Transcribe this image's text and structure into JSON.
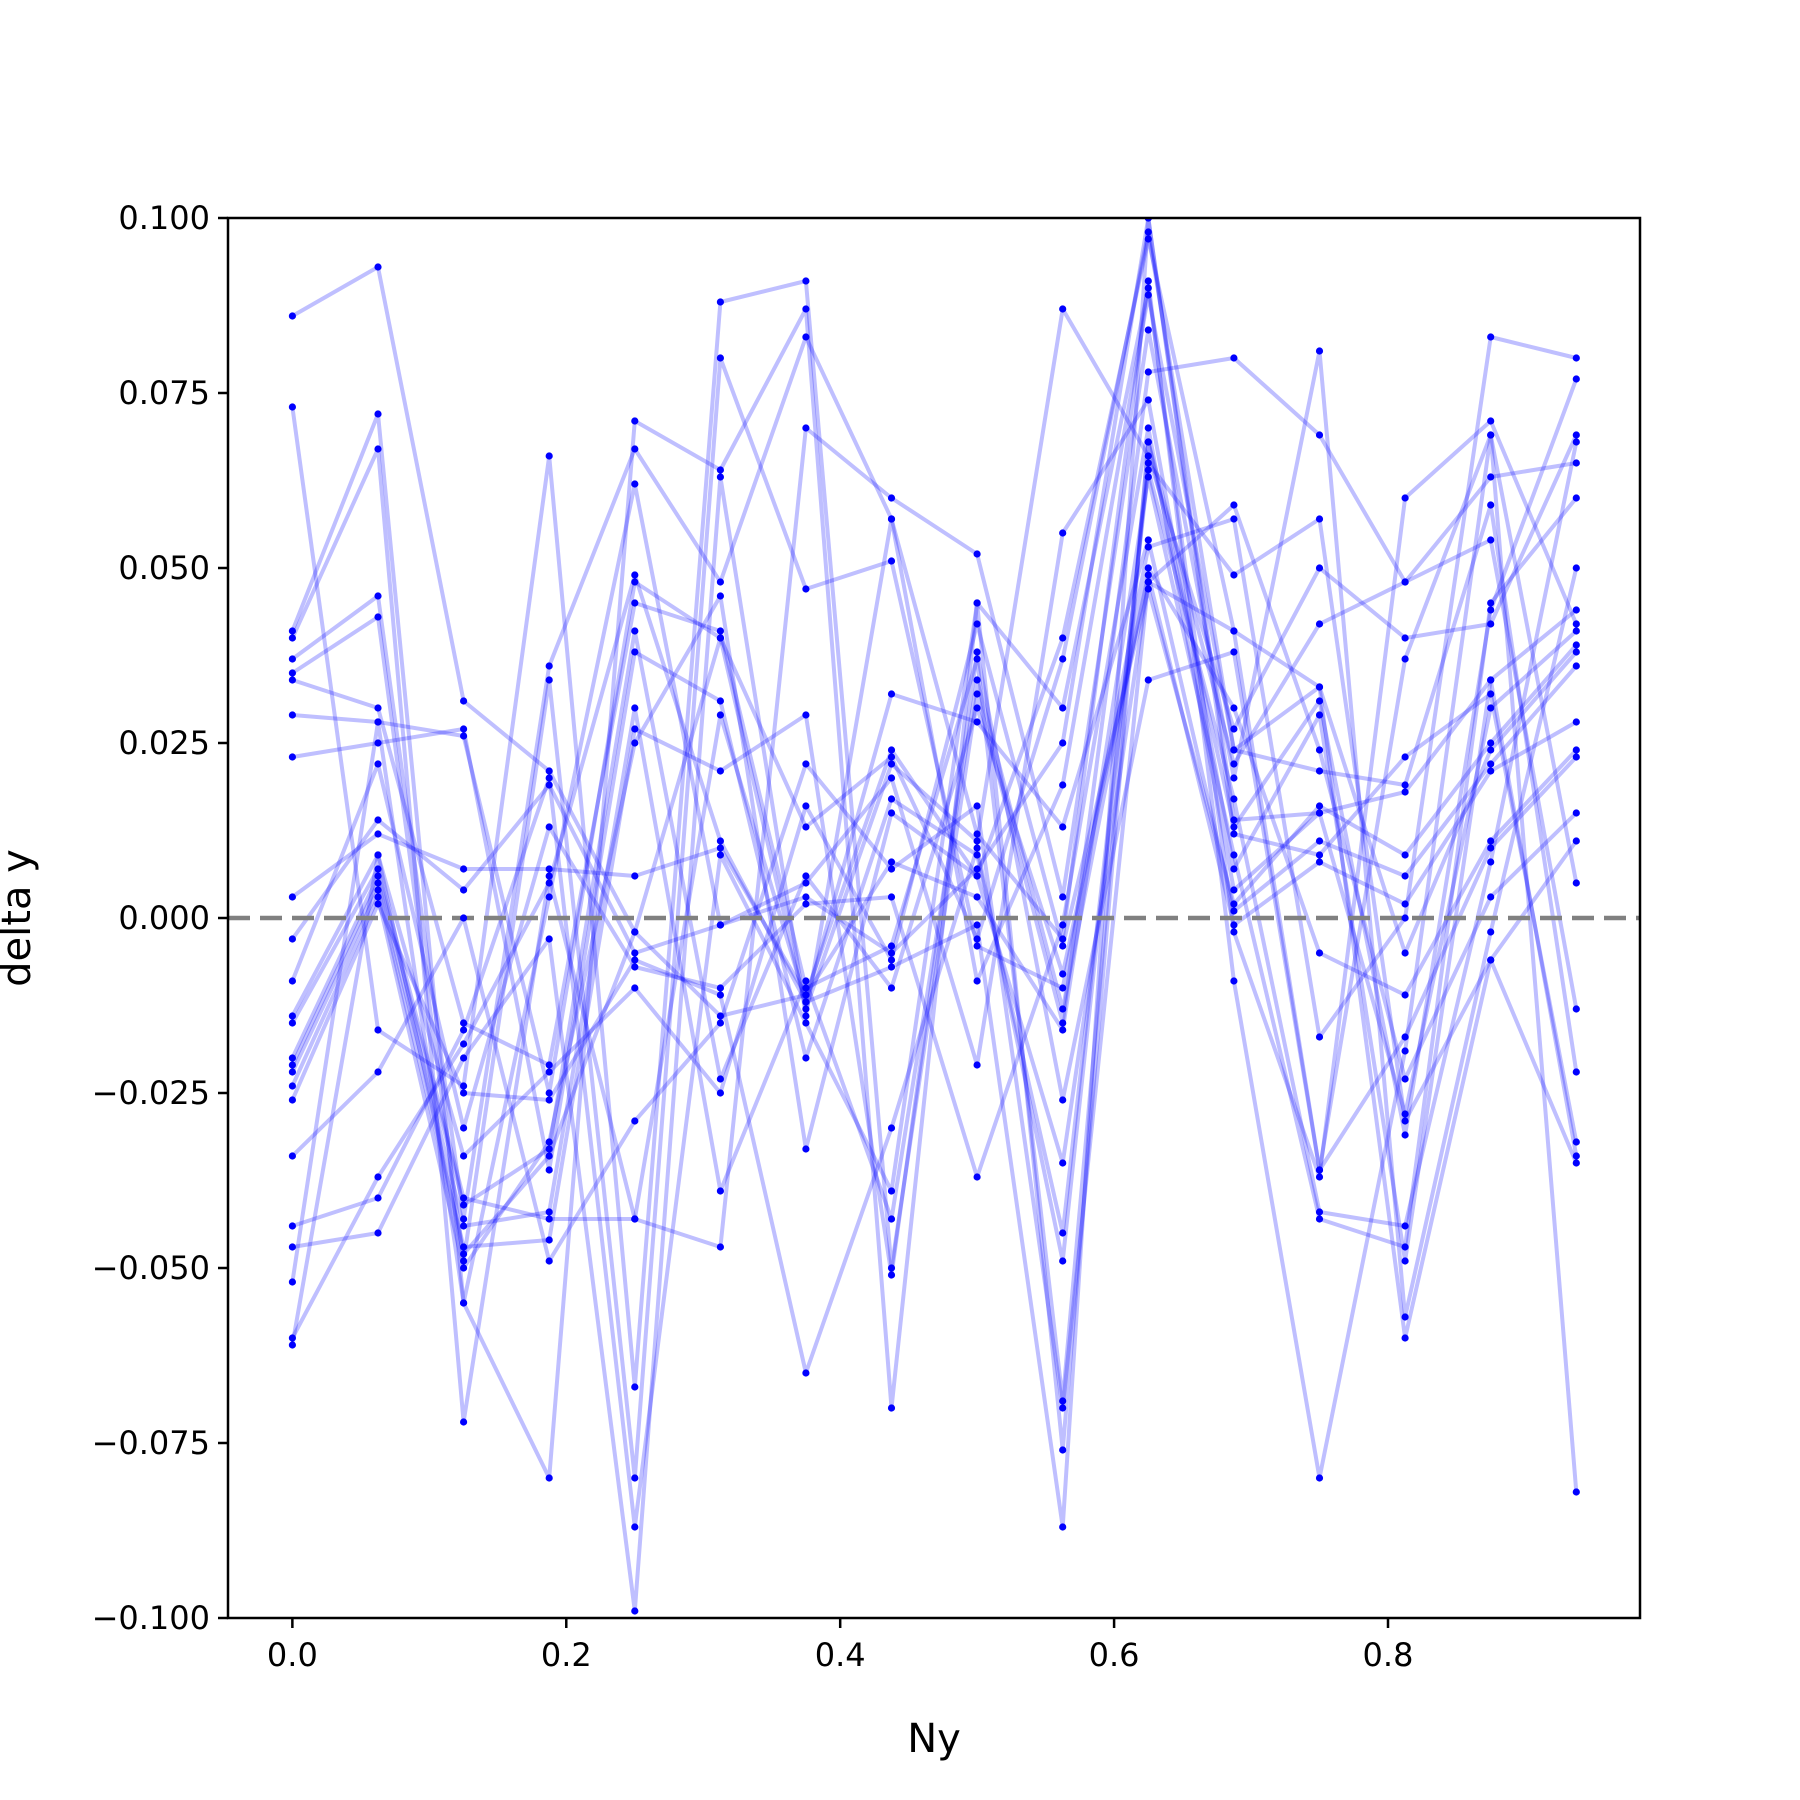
{
  "chart_data": {
    "type": "line",
    "xlabel": "Ny",
    "ylabel": "delta y",
    "xlim": [
      -0.047,
      0.984
    ],
    "ylim": [
      -0.1,
      0.1
    ],
    "x": [
      0.0,
      0.0625,
      0.125,
      0.1875,
      0.25,
      0.3125,
      0.375,
      0.4375,
      0.5,
      0.5625,
      0.625,
      0.6875,
      0.75,
      0.8125,
      0.875,
      0.9375
    ],
    "x_ticks": [
      {
        "value": 0.0,
        "label": "0.0"
      },
      {
        "value": 0.2,
        "label": "0.2"
      },
      {
        "value": 0.4,
        "label": "0.4"
      },
      {
        "value": 0.6,
        "label": "0.6"
      },
      {
        "value": 0.8,
        "label": "0.8"
      }
    ],
    "y_ticks": [
      {
        "value": -0.1,
        "label": "−0.100"
      },
      {
        "value": -0.075,
        "label": "−0.075"
      },
      {
        "value": -0.05,
        "label": "−0.050"
      },
      {
        "value": -0.025,
        "label": "−0.025"
      },
      {
        "value": 0.0,
        "label": "0.000"
      },
      {
        "value": 0.025,
        "label": "0.025"
      },
      {
        "value": 0.05,
        "label": "0.050"
      },
      {
        "value": 0.075,
        "label": "0.075"
      },
      {
        "value": 0.1,
        "label": "0.100"
      }
    ],
    "reference_line": {
      "y": 0.0,
      "style": "dashed",
      "color": "#808080"
    },
    "series_color": "#0000ff",
    "series_opacity": 0.25,
    "grid": false,
    "series": [
      {
        "values": [
          0.086,
          0.093,
          0.031,
          0.021,
          -0.002,
          -0.014,
          -0.011,
          0.024,
          0.006,
          0.04,
          0.097,
          0.041,
          0.033,
          -0.005,
          0.024,
          0.038
        ]
      },
      {
        "values": [
          0.073,
          -0.016,
          -0.024,
          0.066,
          -0.067,
          0.088,
          0.091,
          -0.05,
          0.032,
          -0.015,
          0.078,
          0.08,
          0.069,
          0.048,
          0.063,
          0.065
        ]
      },
      {
        "values": [
          0.041,
          0.072,
          -0.055,
          -0.08,
          0.071,
          0.064,
          0.087,
          -0.07,
          0.045,
          0.03,
          0.09,
          -0.002,
          -0.037,
          0.06,
          0.071,
          0.042
        ]
      },
      {
        "values": [
          0.04,
          0.067,
          -0.072,
          0.006,
          -0.043,
          -0.047,
          0.07,
          0.06,
          0.052,
          0.003,
          0.084,
          0.02,
          0.081,
          -0.057,
          -0.002,
          0.05
        ]
      },
      {
        "values": [
          0.037,
          0.046,
          -0.043,
          0.036,
          0.067,
          0.048,
          0.083,
          0.057,
          0.012,
          -0.003,
          0.091,
          -0.009,
          -0.08,
          -0.019,
          0.069,
          -0.082
        ]
      },
      {
        "values": [
          0.035,
          0.043,
          -0.049,
          0.034,
          -0.08,
          0.08,
          0.047,
          0.051,
          -0.004,
          -0.01,
          0.053,
          0.057,
          -0.017,
          0.0,
          0.083,
          0.08
        ]
      },
      {
        "values": [
          0.034,
          0.03,
          -0.015,
          -0.021,
          0.045,
          0.041,
          -0.01,
          -0.004,
          0.037,
          -0.069,
          0.068,
          0.013,
          0.031,
          -0.031,
          0.044,
          0.077
        ]
      },
      {
        "values": [
          0.029,
          0.028,
          0.026,
          -0.025,
          0.048,
          0.04,
          -0.013,
          0.022,
          0.011,
          0.087,
          0.066,
          0.027,
          0.05,
          0.04,
          0.042,
          0.069
        ]
      },
      {
        "values": [
          0.023,
          0.025,
          0.027,
          -0.036,
          0.038,
          0.031,
          -0.02,
          0.017,
          0.009,
          -0.045,
          0.064,
          0.017,
          -0.042,
          -0.044,
          0.008,
          0.068
        ]
      },
      {
        "values": [
          0.003,
          0.012,
          0.007,
          0.007,
          0.006,
          0.01,
          -0.011,
          0.008,
          0.003,
          -0.016,
          0.063,
          0.009,
          -0.043,
          -0.047,
          0.045,
          0.06
        ]
      },
      {
        "values": [
          -0.003,
          0.014,
          0.004,
          0.019,
          -0.005,
          -0.001,
          0.005,
          0.02,
          -0.021,
          0.055,
          0.074,
          0.007,
          0.029,
          -0.049,
          0.034,
          0.044
        ]
      },
      {
        "values": [
          -0.009,
          0.022,
          -0.03,
          0.013,
          -0.007,
          -0.01,
          0.002,
          0.003,
          -0.037,
          -0.001,
          0.07,
          0.004,
          0.015,
          -0.028,
          0.03,
          0.041
        ]
      },
      {
        "values": [
          -0.014,
          0.009,
          -0.034,
          -0.022,
          -0.01,
          -0.025,
          0.016,
          -0.006,
          0.042,
          -0.004,
          0.047,
          0.002,
          0.016,
          0.009,
          0.025,
          0.039
        ]
      },
      {
        "values": [
          -0.015,
          0.007,
          -0.04,
          -0.043,
          -0.043,
          0.029,
          -0.012,
          0.032,
          0.028,
          0.013,
          0.054,
          0.001,
          0.011,
          0.006,
          0.022,
          0.036
        ]
      },
      {
        "values": [
          -0.02,
          0.006,
          -0.041,
          -0.033,
          0.041,
          -0.023,
          0.006,
          -0.01,
          0.03,
          -0.008,
          0.049,
          -0.001,
          0.008,
          0.002,
          0.021,
          0.028
        ]
      },
      {
        "values": [
          -0.021,
          0.005,
          -0.044,
          -0.042,
          0.03,
          -0.039,
          -0.009,
          -0.043,
          0.034,
          -0.013,
          0.05,
          0.03,
          -0.005,
          -0.011,
          0.011,
          0.024
        ]
      },
      {
        "values": [
          -0.022,
          0.004,
          -0.047,
          -0.046,
          0.027,
          0.021,
          0.029,
          -0.051,
          0.038,
          -0.026,
          0.034,
          0.038,
          -0.036,
          -0.017,
          0.01,
          0.023
        ]
      },
      {
        "values": [
          -0.024,
          0.003,
          -0.05,
          -0.032,
          0.025,
          0.046,
          -0.033,
          0.015,
          0.006,
          -0.035,
          0.048,
          0.059,
          0.024,
          -0.023,
          0.003,
          0.015
        ]
      },
      {
        "values": [
          -0.026,
          0.002,
          -0.025,
          -0.026,
          -0.006,
          -0.011,
          -0.065,
          -0.03,
          0.01,
          -0.049,
          0.065,
          0.049,
          0.057,
          -0.029,
          -0.006,
          0.011
        ]
      },
      {
        "values": [
          -0.034,
          -0.022,
          0.0,
          -0.049,
          -0.029,
          -0.015,
          0.022,
          0.007,
          0.016,
          -0.07,
          0.048,
          0.041,
          -0.036,
          0.037,
          0.069,
          0.005
        ]
      },
      {
        "values": [
          -0.044,
          -0.04,
          -0.016,
          0.02,
          -0.087,
          0.009,
          -0.015,
          -0.039,
          0.045,
          -0.076,
          0.068,
          0.022,
          0.042,
          0.048,
          0.054,
          -0.013
        ]
      },
      {
        "values": [
          -0.047,
          -0.045,
          -0.02,
          -0.003,
          -0.099,
          0.063,
          -0.014,
          0.057,
          -0.009,
          0.019,
          0.089,
          0.024,
          0.021,
          0.019,
          0.059,
          -0.022
        ]
      },
      {
        "values": [
          -0.052,
          0.028,
          -0.055,
          0.003,
          0.062,
          -0.001,
          0.003,
          -0.005,
          0.007,
          0.025,
          0.1,
          0.012,
          0.009,
          0.023,
          0.032,
          -0.032
        ]
      },
      {
        "values": [
          -0.06,
          -0.037,
          -0.018,
          0.005,
          0.049,
          0.011,
          -0.012,
          -0.007,
          -0.001,
          -0.087,
          0.1,
          0.014,
          0.015,
          0.018,
          0.034,
          -0.034
        ]
      },
      {
        "values": [
          -0.061,
          0.009,
          -0.048,
          -0.034,
          -0.002,
          0.04,
          0.013,
          0.023,
          -0.003,
          0.037,
          0.098,
          0.024,
          0.033,
          -0.06,
          -0.006,
          -0.035
        ]
      }
    ]
  }
}
